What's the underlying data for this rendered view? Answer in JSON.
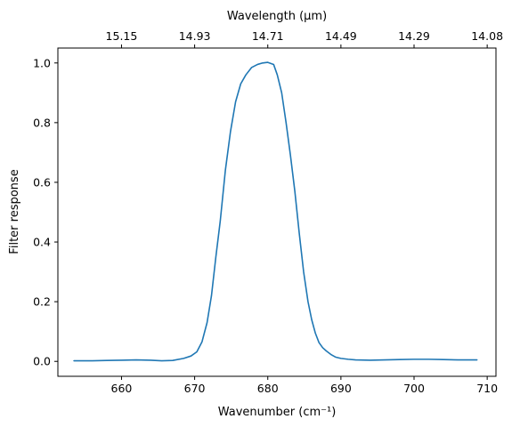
{
  "chart_data": {
    "type": "line",
    "xlabel": "Wavenumber (cm⁻¹)",
    "ylabel": "Filter response",
    "top_axis_label": "Wavelength (μm)",
    "xlim": [
      651.3,
      711.2
    ],
    "ylim": [
      -0.05,
      1.05
    ],
    "grid": false,
    "x_ticks": [
      660,
      670,
      680,
      690,
      700,
      710
    ],
    "x_tick_labels": [
      "660",
      "670",
      "680",
      "690",
      "700",
      "710"
    ],
    "y_ticks": [
      0.0,
      0.2,
      0.4,
      0.6,
      0.8,
      1.0
    ],
    "y_tick_labels": [
      "0.0",
      "0.2",
      "0.4",
      "0.6",
      "0.8",
      "1.0"
    ],
    "top_ticks": [
      660,
      670,
      680,
      690,
      700,
      710
    ],
    "top_tick_labels": [
      "15.15",
      "14.93",
      "14.71",
      "14.49",
      "14.29",
      "14.08"
    ],
    "series": [
      {
        "color": "#1f77b4",
        "x": [
          653.5,
          656,
          658,
          660,
          662,
          664,
          665.5,
          667,
          668.5,
          669.5,
          670.3,
          671,
          671.7,
          672.3,
          672.9,
          673.5,
          674.2,
          674.9,
          675.6,
          676.3,
          677,
          677.8,
          678.6,
          679.3,
          680,
          680.8,
          681.3,
          681.9,
          682.5,
          683.1,
          683.7,
          684.3,
          684.9,
          685.5,
          686,
          686.5,
          687,
          687.5,
          688,
          688.7,
          689.3,
          690,
          691,
          692,
          694,
          696,
          698,
          700,
          702,
          704,
          706,
          708.6
        ],
        "y": [
          0.002,
          0.002,
          0.003,
          0.004,
          0.005,
          0.004,
          0.002,
          0.003,
          0.01,
          0.018,
          0.032,
          0.065,
          0.13,
          0.22,
          0.35,
          0.47,
          0.64,
          0.77,
          0.87,
          0.93,
          0.96,
          0.985,
          0.995,
          1.0,
          1.002,
          0.995,
          0.96,
          0.9,
          0.8,
          0.69,
          0.57,
          0.43,
          0.3,
          0.2,
          0.14,
          0.095,
          0.063,
          0.046,
          0.035,
          0.022,
          0.014,
          0.01,
          0.007,
          0.005,
          0.004,
          0.005,
          0.006,
          0.007,
          0.007,
          0.006,
          0.005,
          0.005
        ]
      }
    ]
  }
}
